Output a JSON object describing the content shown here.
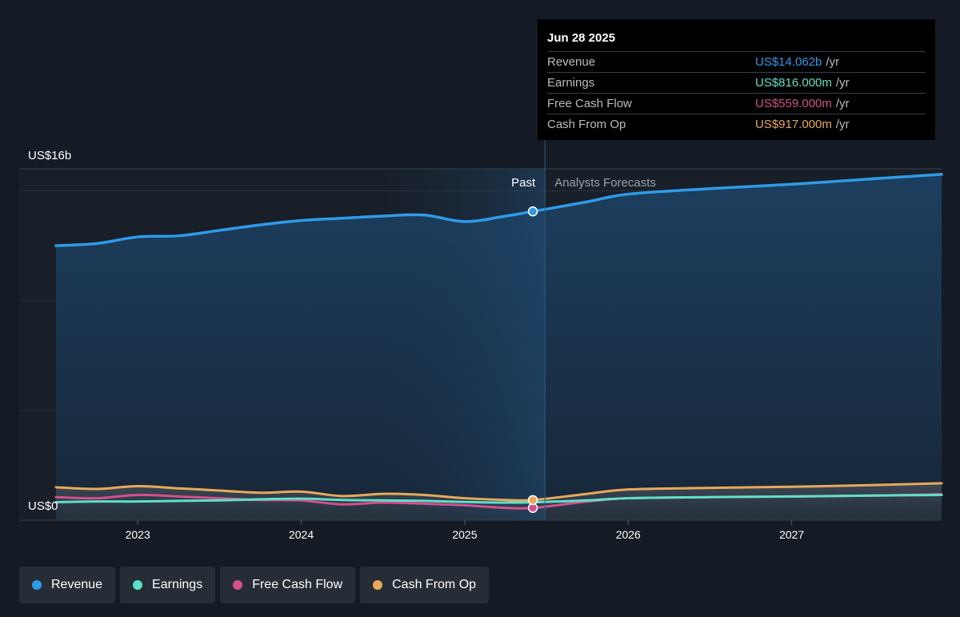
{
  "chart_data": {
    "type": "area",
    "currency_top_label": "US$16b",
    "currency_bottom_label": "US$0",
    "ylim": [
      0,
      16
    ],
    "y_unit": "US$ billions",
    "x_range": [
      "2022-07",
      "2027-12"
    ],
    "x_ticks": [
      "2023",
      "2024",
      "2025",
      "2026",
      "2027"
    ],
    "past_label": "Past",
    "forecast_label": "Analysts Forecasts",
    "divider_date": "2025-06-28",
    "series": [
      {
        "name": "Revenue",
        "color": "#2f9be8",
        "points": [
          [
            "2022-07",
            12.5
          ],
          [
            "2022-10",
            12.6
          ],
          [
            "2023-01",
            12.9
          ],
          [
            "2023-04",
            12.95
          ],
          [
            "2023-07",
            13.2
          ],
          [
            "2023-10",
            13.45
          ],
          [
            "2024-01",
            13.65
          ],
          [
            "2024-04",
            13.75
          ],
          [
            "2024-07",
            13.85
          ],
          [
            "2024-10",
            13.9
          ],
          [
            "2025-01",
            13.6
          ],
          [
            "2025-04",
            13.85
          ],
          [
            "2025-06",
            14.062
          ],
          [
            "2025-10",
            14.5
          ],
          [
            "2026-01",
            14.85
          ],
          [
            "2026-07",
            15.1
          ],
          [
            "2027-01",
            15.3
          ],
          [
            "2027-07",
            15.55
          ],
          [
            "2027-12",
            15.75
          ]
        ]
      },
      {
        "name": "Earnings",
        "color": "#5fe0c8",
        "points": [
          [
            "2022-07",
            0.82
          ],
          [
            "2022-10",
            0.85
          ],
          [
            "2023-01",
            0.85
          ],
          [
            "2023-04",
            0.88
          ],
          [
            "2023-07",
            0.9
          ],
          [
            "2023-10",
            0.95
          ],
          [
            "2024-01",
            0.98
          ],
          [
            "2024-04",
            0.92
          ],
          [
            "2024-07",
            0.9
          ],
          [
            "2024-10",
            0.88
          ],
          [
            "2025-01",
            0.83
          ],
          [
            "2025-04",
            0.8
          ],
          [
            "2025-06",
            0.816
          ],
          [
            "2025-10",
            0.9
          ],
          [
            "2026-01",
            1.0
          ],
          [
            "2026-07",
            1.05
          ],
          [
            "2027-01",
            1.08
          ],
          [
            "2027-07",
            1.12
          ],
          [
            "2027-12",
            1.15
          ]
        ]
      },
      {
        "name": "Free Cash Flow",
        "color": "#d3508c",
        "points": [
          [
            "2022-07",
            1.05
          ],
          [
            "2022-10",
            1.0
          ],
          [
            "2023-01",
            1.15
          ],
          [
            "2023-04",
            1.08
          ],
          [
            "2023-07",
            1.0
          ],
          [
            "2023-10",
            0.92
          ],
          [
            "2024-01",
            0.9
          ],
          [
            "2024-04",
            0.72
          ],
          [
            "2024-07",
            0.8
          ],
          [
            "2024-10",
            0.75
          ],
          [
            "2025-01",
            0.68
          ],
          [
            "2025-04",
            0.56
          ],
          [
            "2025-06",
            0.559
          ],
          [
            "2025-10",
            0.85
          ],
          [
            "2026-01",
            1.0
          ],
          [
            "2026-07",
            1.05
          ],
          [
            "2027-01",
            1.08
          ],
          [
            "2027-07",
            1.12
          ],
          [
            "2027-12",
            1.18
          ]
        ]
      },
      {
        "name": "Cash From Op",
        "color": "#e8a95a",
        "points": [
          [
            "2022-07",
            1.5
          ],
          [
            "2022-10",
            1.42
          ],
          [
            "2023-01",
            1.55
          ],
          [
            "2023-04",
            1.45
          ],
          [
            "2023-07",
            1.35
          ],
          [
            "2023-10",
            1.25
          ],
          [
            "2024-01",
            1.3
          ],
          [
            "2024-04",
            1.1
          ],
          [
            "2024-07",
            1.2
          ],
          [
            "2024-10",
            1.15
          ],
          [
            "2025-01",
            1.0
          ],
          [
            "2025-04",
            0.92
          ],
          [
            "2025-06",
            0.917
          ],
          [
            "2025-10",
            1.2
          ],
          [
            "2026-01",
            1.4
          ],
          [
            "2026-07",
            1.47
          ],
          [
            "2027-01",
            1.52
          ],
          [
            "2027-07",
            1.6
          ],
          [
            "2027-12",
            1.68
          ]
        ]
      }
    ]
  },
  "tooltip": {
    "date": "Jun 28 2025",
    "rows": [
      {
        "label": "Revenue",
        "value": "US$14.062b",
        "unit": "/yr",
        "color": "#2f9be8"
      },
      {
        "label": "Earnings",
        "value": "US$816.000m",
        "unit": "/yr",
        "color": "#5fe0c8"
      },
      {
        "label": "Free Cash Flow",
        "value": "US$559.000m",
        "unit": "/yr",
        "color": "#d3508c"
      },
      {
        "label": "Cash From Op",
        "value": "US$917.000m",
        "unit": "/yr",
        "color": "#e8a95a"
      }
    ]
  },
  "legend": [
    {
      "label": "Revenue",
      "color": "#2f9be8"
    },
    {
      "label": "Earnings",
      "color": "#5fe0c8"
    },
    {
      "label": "Free Cash Flow",
      "color": "#d3508c"
    },
    {
      "label": "Cash From Op",
      "color": "#e8a95a"
    }
  ]
}
